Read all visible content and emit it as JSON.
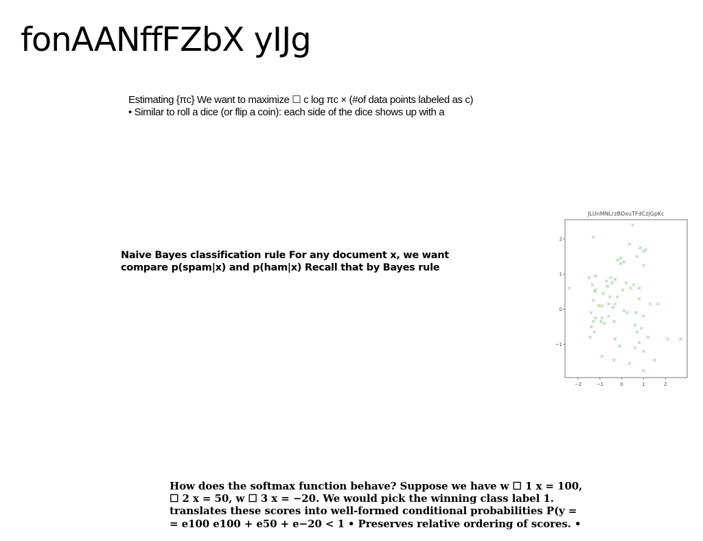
{
  "page": {
    "title": "fonAANffFZbX yIJg"
  },
  "estimating_block": {
    "line1": "Estimating {πc} We want to maximize ☐ c log πc × (#of data points labeled as c)",
    "line2": "• Similar to roll a dice (or flip a coin): each side of the dice shows up with a"
  },
  "naive_bayes_block": {
    "line1": "Naive Bayes classification rule For any document x, we want",
    "line2": "compare p(spam|x) and p(ham|x) Recall that by Bayes rule"
  },
  "softmax_block": {
    "line1": "How does the softmax function behave? Suppose we have w ☐ 1 x = 100,",
    "line2": "☐ 2 x = 50, w ☐ 3 x = −20. We would pick the winning class label 1.",
    "line3": "translates these scores into well-formed conditional probabilities P(y =",
    "line4": "= e100 e100 + e50 + e−20 < 1 • Preserves relative ordering of scores. •"
  },
  "chart_data": {
    "type": "scatter",
    "title": "JLUnMNLrzBDxuTFdCzjGpKc",
    "xlabel": "",
    "ylabel": "",
    "xlim": [
      -2.6,
      3.0
    ],
    "ylim": [
      -1.95,
      2.55
    ],
    "xticks": [
      -2,
      -1,
      0,
      1,
      2
    ],
    "xtick_labels": [
      "−2",
      "−1",
      "0",
      "1",
      "2"
    ],
    "yticks": [
      -1,
      0,
      1,
      2
    ],
    "ytick_labels": [
      "−1",
      "0",
      "1",
      "2"
    ],
    "marker": "x",
    "color": "#9fd39a",
    "grid": false,
    "series": [
      {
        "x": [
          0.5,
          -1.3,
          1.0,
          0.35,
          0.85,
          1.1,
          -0.2,
          0.1,
          -0.05,
          0.7,
          -0.05,
          1.0,
          -1.2,
          -0.5,
          -0.3,
          -0.7,
          -0.45,
          -1.5,
          -1.35,
          -1.2,
          0.2,
          0.55,
          0.8,
          0.4,
          -0.65,
          -1.25,
          0.05,
          -2.4,
          -0.85,
          -0.55,
          -1.3,
          -0.2,
          1.3,
          1.65,
          0.8,
          -0.9,
          -1.05,
          -0.6,
          -0.3,
          -0.4,
          0.1,
          -1.4,
          -1.2,
          -0.6,
          0.25,
          0.65,
          1.0,
          -0.9,
          -0.95,
          -1.3,
          -0.35,
          -0.8,
          -1.4,
          0.6,
          0.9,
          0.7,
          1.2,
          2.1,
          2.7,
          -1.25,
          -1.45,
          -0.3,
          -0.1,
          0.8,
          0.6,
          1.0,
          -0.9,
          -0.35,
          0.35,
          1.5,
          1.0
        ],
        "y": [
          2.4,
          2.05,
          1.65,
          1.85,
          1.75,
          1.7,
          1.4,
          1.35,
          1.45,
          1.5,
          1.3,
          1.25,
          0.95,
          0.9,
          0.85,
          0.8,
          0.75,
          0.9,
          0.7,
          0.55,
          0.75,
          0.7,
          0.6,
          0.6,
          0.65,
          0.5,
          0.55,
          0.6,
          0.45,
          0.35,
          0.25,
          0.35,
          0.15,
          0.15,
          0.3,
          0.1,
          0.1,
          0.15,
          0.15,
          0.05,
          -0.05,
          -0.1,
          -0.25,
          -0.2,
          -0.1,
          -0.1,
          -0.2,
          -0.25,
          -0.35,
          -0.35,
          -0.35,
          -0.4,
          -0.5,
          -0.45,
          -0.55,
          -0.65,
          -0.8,
          -0.85,
          -0.85,
          -0.65,
          -0.8,
          -0.85,
          -1.05,
          -0.95,
          -1.1,
          -1.2,
          -1.35,
          -1.45,
          -1.55,
          -1.45,
          -1.75
        ]
      }
    ]
  }
}
